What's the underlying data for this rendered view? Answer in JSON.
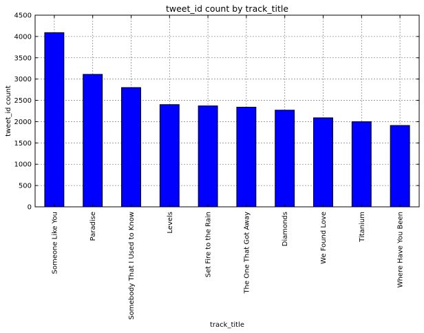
{
  "chart_data": {
    "type": "bar",
    "title": "tweet_id count by track_title",
    "xlabel": "track_title",
    "ylabel": "tweet_id count",
    "categories": [
      "Someone Like You",
      "Paradise",
      "Somebody That I Used to Know",
      "Levels",
      "Set Fire to the Rain",
      "The One That Got Away",
      "Diamonds",
      "We Found Love",
      "Titanium",
      "Where Have You Been"
    ],
    "values": [
      4090,
      3110,
      2800,
      2400,
      2370,
      2340,
      2270,
      2090,
      2000,
      1910
    ],
    "ylim": [
      0,
      4500
    ],
    "yticks": [
      "0",
      "500",
      "1000",
      "1500",
      "2000",
      "2500",
      "3000",
      "3500",
      "4000",
      "4500"
    ],
    "grid": true,
    "legend": "none",
    "bar_color": "#0000ff"
  }
}
